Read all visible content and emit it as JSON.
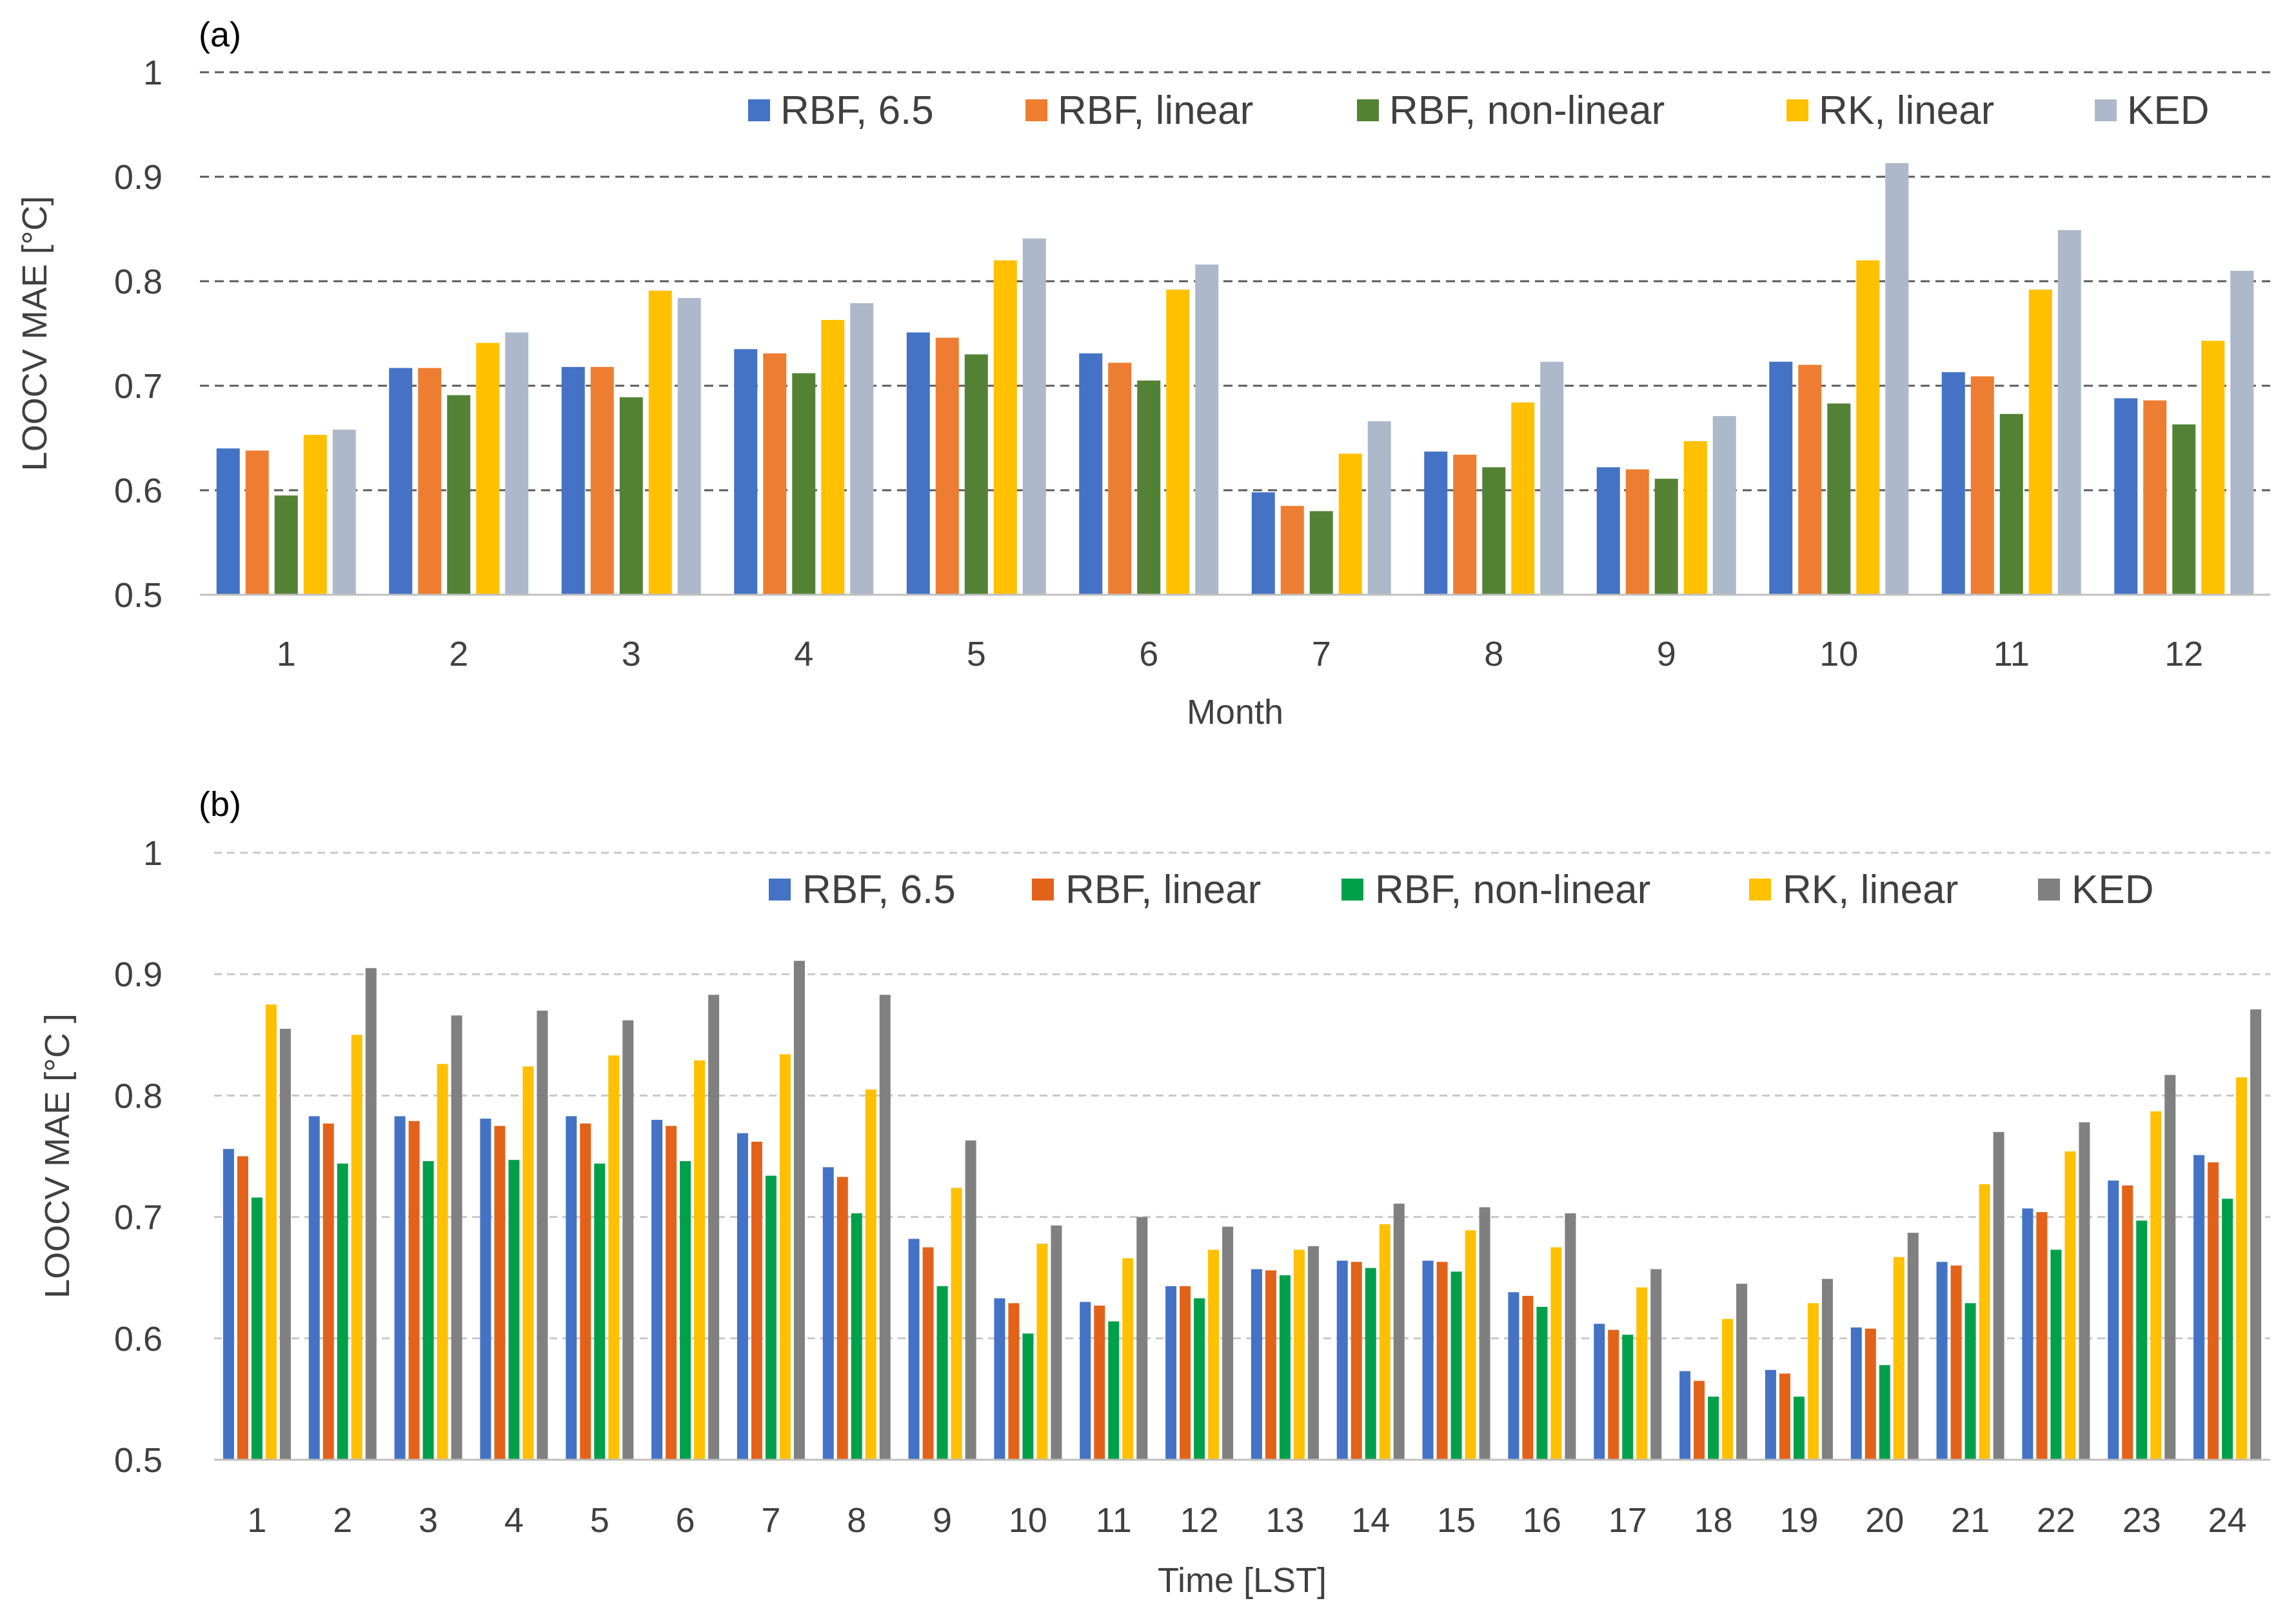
{
  "chart_data": [
    {
      "panel_label": "(a)",
      "type": "bar",
      "xlabel": "Month",
      "ylabel": "LOOCV MAE [°C]",
      "ylim": [
        0.5,
        1.0
      ],
      "yticks": [
        "0.5",
        "0.6",
        "0.7",
        "0.8",
        "0.9",
        "1"
      ],
      "gridlines": "dashed",
      "legend_position": "top",
      "categories": [
        "1",
        "2",
        "3",
        "4",
        "5",
        "6",
        "7",
        "8",
        "9",
        "10",
        "11",
        "12"
      ],
      "series": [
        {
          "name": "RBF,  6.5",
          "color": "#4472C4",
          "values": [
            0.64,
            0.717,
            0.718,
            0.735,
            0.751,
            0.731,
            0.598,
            0.637,
            0.622,
            0.723,
            0.713,
            0.688
          ]
        },
        {
          "name": "RBF,  linear",
          "color": "#ED7D31",
          "values": [
            0.638,
            0.717,
            0.718,
            0.731,
            0.746,
            0.722,
            0.585,
            0.634,
            0.62,
            0.72,
            0.709,
            0.686
          ]
        },
        {
          "name": "RBF,  non-linear",
          "color": "#548235",
          "values": [
            0.595,
            0.691,
            0.689,
            0.712,
            0.73,
            0.705,
            0.58,
            0.622,
            0.611,
            0.683,
            0.673,
            0.663
          ]
        },
        {
          "name": "RK,  linear",
          "color": "#FFC000",
          "values": [
            0.653,
            0.741,
            0.791,
            0.763,
            0.82,
            0.792,
            0.635,
            0.684,
            0.647,
            0.82,
            0.792,
            0.743
          ]
        },
        {
          "name": "KED",
          "color": "#ADB9CA",
          "values": [
            0.658,
            0.751,
            0.784,
            0.779,
            0.841,
            0.816,
            0.666,
            0.723,
            0.671,
            0.913,
            0.849,
            0.81
          ]
        }
      ]
    },
    {
      "panel_label": "(b)",
      "type": "bar",
      "xlabel": "Time [LST]",
      "ylabel": "LOOCV MAE [°C ]",
      "ylim": [
        0.5,
        1.0
      ],
      "yticks": [
        "0.5",
        "0.6",
        "0.7",
        "0.8",
        "0.9",
        "1"
      ],
      "gridlines": "dashed",
      "legend_position": "top",
      "categories": [
        "1",
        "2",
        "3",
        "4",
        "5",
        "6",
        "7",
        "8",
        "9",
        "10",
        "11",
        "12",
        "13",
        "14",
        "15",
        "16",
        "17",
        "18",
        "19",
        "20",
        "21",
        "22",
        "23",
        "24"
      ],
      "series": [
        {
          "name": "RBF,  6.5",
          "color": "#4472C4",
          "values": [
            0.756,
            0.783,
            0.783,
            0.781,
            0.783,
            0.78,
            0.769,
            0.741,
            0.682,
            0.633,
            0.63,
            0.643,
            0.657,
            0.664,
            0.664,
            0.638,
            0.612,
            0.573,
            0.574,
            0.609,
            0.663,
            0.707,
            0.73,
            0.751
          ]
        },
        {
          "name": "RBF,  linear",
          "color": "#E2621A",
          "values": [
            0.75,
            0.777,
            0.779,
            0.775,
            0.777,
            0.775,
            0.762,
            0.733,
            0.675,
            0.629,
            0.627,
            0.643,
            0.656,
            0.663,
            0.663,
            0.635,
            0.607,
            0.565,
            0.571,
            0.608,
            0.66,
            0.704,
            0.726,
            0.745
          ]
        },
        {
          "name": "RBF,  non-linear",
          "color": "#00A04A",
          "values": [
            0.716,
            0.744,
            0.746,
            0.747,
            0.744,
            0.746,
            0.734,
            0.703,
            0.643,
            0.604,
            0.614,
            0.633,
            0.652,
            0.658,
            0.655,
            0.626,
            0.603,
            0.552,
            0.552,
            0.578,
            0.629,
            0.673,
            0.697,
            0.715
          ]
        },
        {
          "name": "RK,  linear",
          "color": "#FFC000",
          "values": [
            0.875,
            0.85,
            0.826,
            0.824,
            0.833,
            0.829,
            0.834,
            0.805,
            0.724,
            0.678,
            0.666,
            0.673,
            0.673,
            0.694,
            0.689,
            0.675,
            0.642,
            0.616,
            0.629,
            0.667,
            0.727,
            0.754,
            0.787,
            0.815
          ]
        },
        {
          "name": "KED",
          "color": "#808080",
          "values": [
            0.855,
            0.905,
            0.866,
            0.87,
            0.862,
            0.883,
            0.911,
            0.883,
            0.763,
            0.693,
            0.7,
            0.692,
            0.676,
            0.711,
            0.708,
            0.703,
            0.657,
            0.645,
            0.649,
            0.687,
            0.77,
            0.778,
            0.817,
            0.871
          ]
        }
      ]
    }
  ]
}
